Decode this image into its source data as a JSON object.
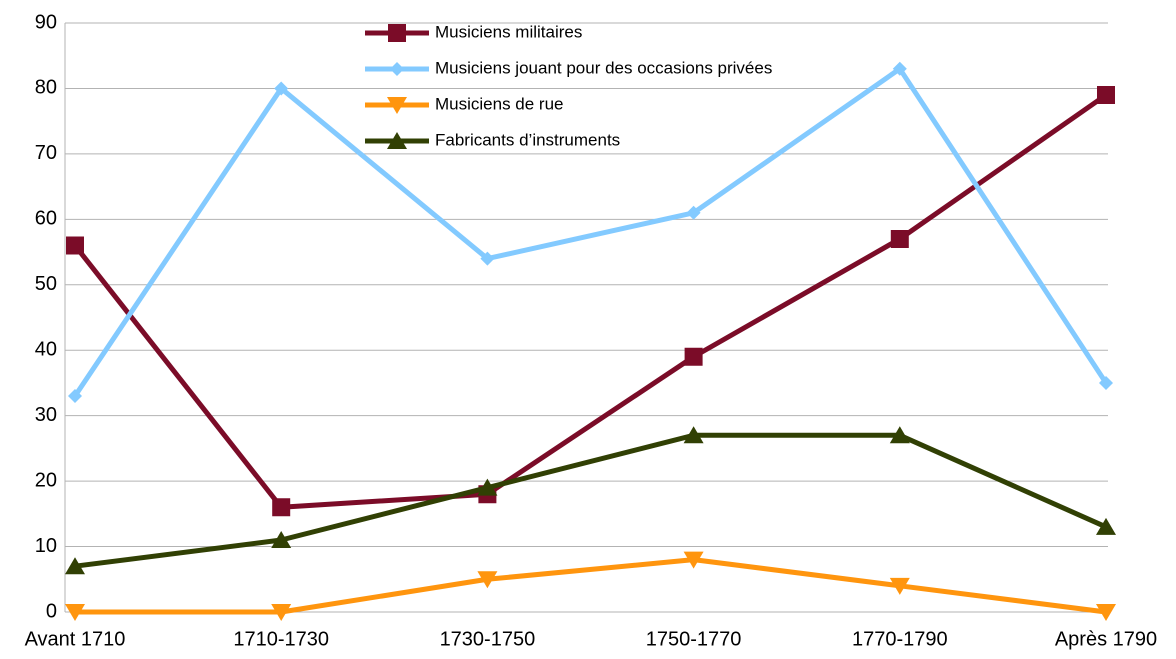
{
  "chart_data": {
    "type": "line",
    "categories": [
      "Avant 1710",
      "1710-1730",
      "1730-1750",
      "1750-1770",
      "1770-1790",
      "Après 1790"
    ],
    "series": [
      {
        "name": "Musiciens militaires",
        "color": "#7b0c28",
        "marker": "square",
        "values": [
          56,
          16,
          18,
          39,
          57,
          79
        ]
      },
      {
        "name": "Musiciens jouant pour des occasions privées",
        "color": "#83caff",
        "marker": "diamond",
        "values": [
          33,
          80,
          54,
          61,
          83,
          35
        ]
      },
      {
        "name": "Musiciens de rue",
        "color": "#ff950e",
        "marker": "triangle-down",
        "values": [
          0,
          0,
          5,
          8,
          4,
          0
        ]
      },
      {
        "name": "Fabricants d’instruments",
        "color": "#314004",
        "marker": "triangle-up",
        "values": [
          7,
          11,
          19,
          27,
          27,
          13
        ]
      }
    ],
    "ylim": [
      0,
      90
    ],
    "yticks": [
      0,
      10,
      20,
      30,
      40,
      50,
      60,
      70,
      80,
      90
    ],
    "grid": true,
    "legend": "top"
  }
}
